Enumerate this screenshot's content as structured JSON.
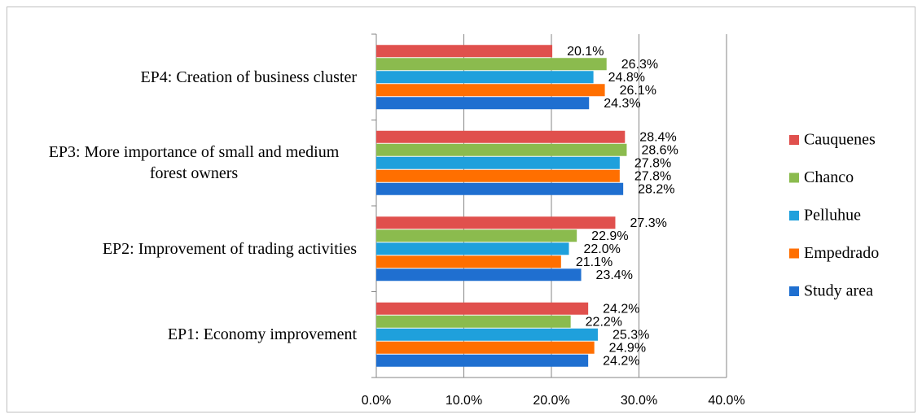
{
  "chart_data": {
    "type": "bar",
    "orientation": "horizontal",
    "categories": [
      "EP1: Economy improvement",
      "EP2: Improvement of trading activities",
      "EP3: More importance of small and medium forest owners",
      "EP4: Creation of business cluster"
    ],
    "series": [
      {
        "name": "Cauquenes",
        "color": "#e0504d",
        "values": [
          24.2,
          27.3,
          28.4,
          20.1
        ],
        "value_labels": [
          "24.2%",
          "27.3%",
          "28.4%",
          "20.1%"
        ]
      },
      {
        "name": "Chanco",
        "color": "#8bbb4e",
        "values": [
          22.2,
          22.9,
          28.6,
          26.3
        ],
        "value_labels": [
          "22.2%",
          "22.9%",
          "28.6%",
          "26.3%"
        ]
      },
      {
        "name": "Pelluhue",
        "color": "#1fa0dc",
        "values": [
          25.3,
          22.0,
          27.8,
          24.8
        ],
        "value_labels": [
          "25.3%",
          "22.0%",
          "27.8%",
          "24.8%"
        ]
      },
      {
        "name": "Empedrado",
        "color": "#ff6f00",
        "values": [
          24.9,
          21.1,
          27.8,
          26.1
        ],
        "value_labels": [
          "24.9%",
          "21.1%",
          "27.8%",
          "26.1%"
        ]
      },
      {
        "name": "Study area",
        "color": "#1f6fd0",
        "values": [
          24.2,
          23.4,
          28.2,
          24.3
        ],
        "value_labels": [
          "24.2%",
          "23.4%",
          "28.2%",
          "24.3%"
        ]
      }
    ],
    "xlim": [
      0,
      40
    ],
    "xticks": [
      {
        "value": 0,
        "label": "0.0%"
      },
      {
        "value": 10,
        "label": "10.0%"
      },
      {
        "value": 20,
        "label": "20.0%"
      },
      {
        "value": 30,
        "label": "30.0%"
      },
      {
        "value": 40,
        "label": "40.0%"
      }
    ],
    "grid": true,
    "legend": "right"
  }
}
